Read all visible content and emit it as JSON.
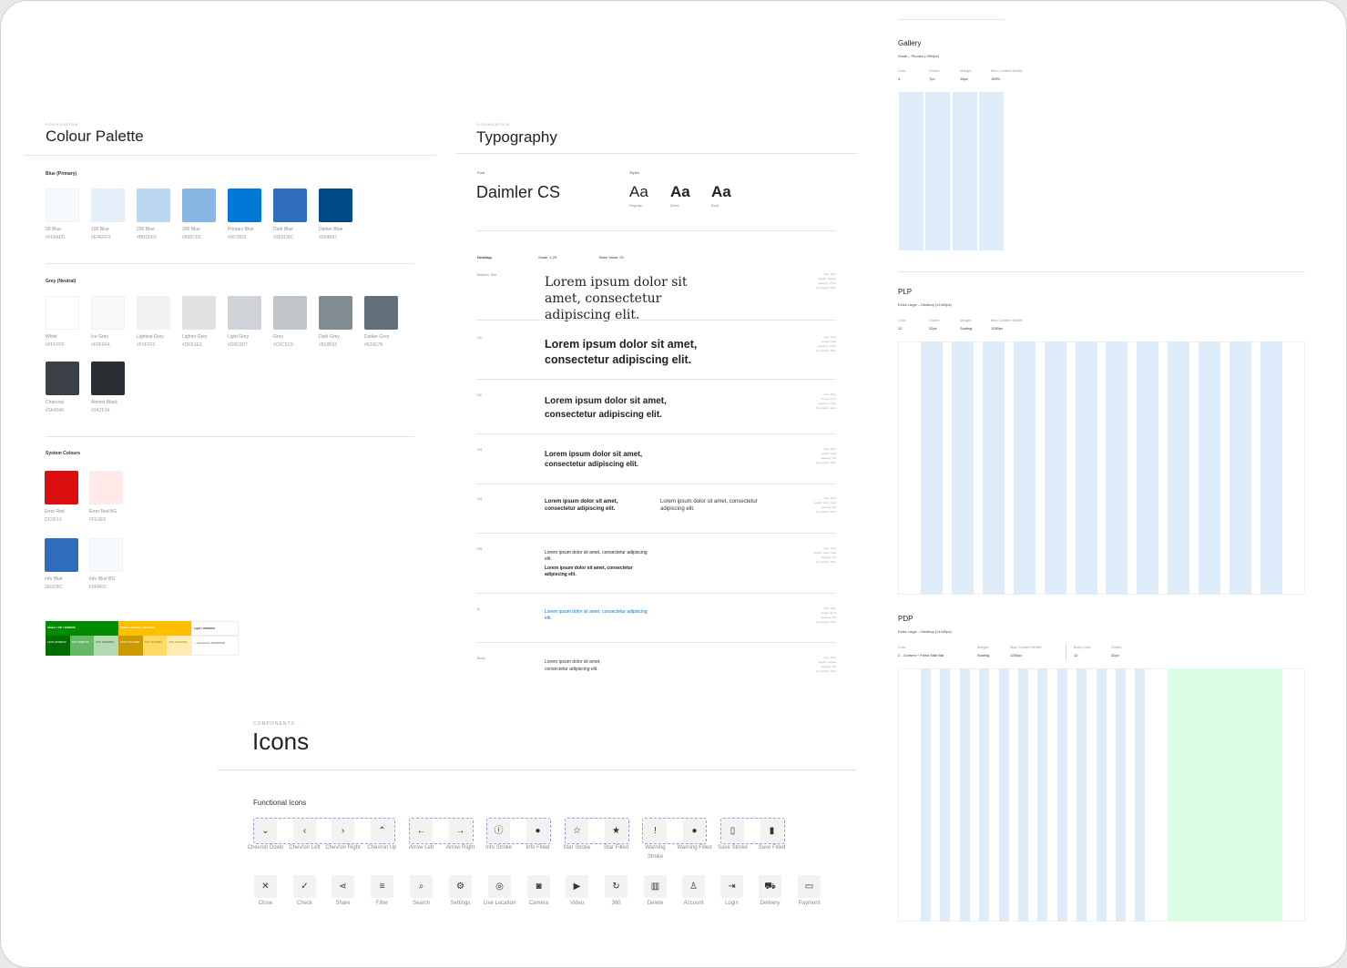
{
  "palette": {
    "eyebrow": "FOUNDATION",
    "title": "Colour Palette",
    "blue_heading": "Blue (Primary)",
    "blue": [
      {
        "name": "50 Blue",
        "hex": "#F6FAFD",
        "color": "#f6fafd"
      },
      {
        "name": "100 Blue",
        "hex": "#E4EFF9",
        "color": "#e4eff9"
      },
      {
        "name": "200 Blue",
        "hex": "#BBD6F0",
        "color": "#bbd6f0"
      },
      {
        "name": "300 Blue",
        "hex": "#89B7E5",
        "color": "#89b7e5"
      },
      {
        "name": "Primary Blue",
        "hex": "#0078D6",
        "color": "#0078d6"
      },
      {
        "name": "Dark Blue",
        "hex": "#2E6CBC",
        "color": "#2e6cbc"
      },
      {
        "name": "Darker Blue",
        "hex": "#004B87",
        "color": "#004b87"
      }
    ],
    "grey_heading": "Grey (Neutral)",
    "grey": [
      {
        "name": "White",
        "hex": "#FFFFFF",
        "color": "#ffffff"
      },
      {
        "name": "Ice Grey",
        "hex": "#F9F9FA",
        "color": "#f9f9fa"
      },
      {
        "name": "Lightest Grey",
        "hex": "#F0F2F3",
        "color": "#f0f2f3"
      },
      {
        "name": "Lighter Grey",
        "hex": "#DFE1E3",
        "color": "#dfe1e3"
      },
      {
        "name": "Light Grey",
        "hex": "#D0D3D7",
        "color": "#d0d3d7"
      },
      {
        "name": "Grey",
        "hex": "#C0C5C9",
        "color": "#c0c5c9"
      },
      {
        "name": "Dark Grey",
        "hex": "#818B92",
        "color": "#818b92"
      },
      {
        "name": "Darker Grey",
        "hex": "#626E78",
        "color": "#626e78"
      },
      {
        "name": "Charcoal",
        "hex": "#3A4046",
        "color": "#3a4046"
      },
      {
        "name": "Almost Black",
        "hex": "#2A2F34",
        "color": "#2a2f34"
      }
    ],
    "system_heading": "System Colours",
    "system": [
      {
        "name": "Error Red",
        "hex": "DC0F10",
        "color": "#dc0f10"
      },
      {
        "name": "Error Red BG",
        "hex": "FFE9E9",
        "color": "#ffe9e9"
      },
      {
        "name": "Info Blue",
        "hex": "2E6CBC",
        "color": "#2e6cbc"
      },
      {
        "name": "Info Blue BG",
        "hex": "F6FAFD",
        "color": "#f6fafd"
      }
    ],
    "status": {
      "ok": "Status / OK / #008A00",
      "caution": "Status / Caution / #FFBF00",
      "light": "Light / #FEFEFE",
      "ok_cells": [
        {
          "label": "120% #006E00",
          "color": "#006e00"
        },
        {
          "label": "40% #66B766",
          "color": "#66b766"
        },
        {
          "label": "30% #B2DBB2",
          "color": "#b2dbb2"
        }
      ],
      "caution_cells": [
        {
          "label": "120% #CC9900",
          "color": "#cc9900"
        },
        {
          "label": "60% #FFD966",
          "color": "#ffd966"
        },
        {
          "label": "30% #FFECB3",
          "color": "#ffecb3"
        }
      ],
      "light_cell": "—transparent #00000000"
    }
  },
  "typography": {
    "eyebrow": "FOUNDATION",
    "title": "Typography",
    "font_label": "Font",
    "font_name": "Daimler CS",
    "styles_label": "Styles",
    "styles": [
      {
        "sample": "Aa",
        "name": "Regular"
      },
      {
        "sample": "Aa",
        "name": "Demi"
      },
      {
        "sample": "Aa",
        "name": "Bold"
      }
    ],
    "desktop": "Desktop",
    "scale": "Scale: 1.25",
    "base": "Base Value: 20",
    "rows": [
      {
        "label": "Banner Title",
        "text": "Lorem ipsum dolor sit amet, consectetur adipiscing elit.",
        "meta": [
          "size: 40px",
          "weight: regular",
          "spacing: -0.5%",
          "line-height: 50px"
        ]
      },
      {
        "label": "H1",
        "text": "Lorem ipsum dolor sit amet, consectetur adipiscing elit.",
        "meta": [
          "size: 31px",
          "weight: bold",
          "spacing: -0.5%",
          "line-height: 38px"
        ]
      },
      {
        "label": "H2",
        "text": "Lorem ipsum dolor sit amet, consectetur adipiscing elit.",
        "meta": [
          "size: 25px",
          "weight: bold",
          "spacing: -0.5%",
          "line-height: 32px"
        ]
      },
      {
        "label": "H3",
        "text": "Lorem ipsum dolor sit amet, consectetur adipiscing elit.",
        "meta": [
          "size: 20px",
          "weight: bold",
          "spacing: 0%",
          "line-height: 26px"
        ]
      },
      {
        "label": "H4",
        "text": "Lorem ipsum dolor sit amet, consectetur adipiscing elit.",
        "text_alt": "Lorem ipsum dolor sit amet, consectetur adipiscing elit.",
        "meta": [
          "size: 16px",
          "weight: demi, bold",
          "spacing: 0%",
          "line-height: 22px"
        ]
      },
      {
        "label": "H5",
        "text": "Lorem ipsum dolor sit amet, consectetur adipiscing elit.",
        "text_alt": "Lorem ipsum dolor sit amet, consectetur adipiscing elit.",
        "meta": [
          "size: 13px",
          "weight: demi, bold",
          "spacing: 0%",
          "line-height: 18px"
        ]
      },
      {
        "label": "A",
        "text": "Lorem ipsum dolor sit amet, consectetur adipiscing elit.",
        "meta": [
          "size: 16px",
          "weight: demi",
          "spacing: 0%",
          "line-height: 24px"
        ]
      },
      {
        "label": "Body",
        "text": "Lorem ipsum dolor sit amet, consectetur adipiscing elit.",
        "meta": [
          "size: 16px",
          "weight: regular",
          "spacing: 0%",
          "line-height: 24px"
        ]
      }
    ]
  },
  "grids": {
    "gallery": {
      "title": "Gallery",
      "subtitle": "Small – Phones (<599px)",
      "labels": [
        "Cols:",
        "Gutter:",
        "Margin:",
        "Max Content Width:"
      ],
      "values": [
        "4",
        "7px",
        "16px",
        "100%"
      ]
    },
    "plp": {
      "title": "PLP",
      "subtitle": "Extra Large – Desktop (≥1440px)",
      "labels": [
        "Cols:",
        "Gutter:",
        "Margin:",
        "Max Content Width:"
      ],
      "values": [
        "12",
        "32px",
        "Scaling",
        "1280px"
      ]
    },
    "pdp": {
      "title": "PDP",
      "subtitle": "Extra Large – Desktop (≥1440px)",
      "labels": [
        "Cols:",
        "Margin:",
        "Max Content Width:",
        "Body Cols:",
        "Gutter:"
      ],
      "values": [
        "2 - Content + Fixed Side Bar",
        "Scaling",
        "1280px",
        "12",
        "32px"
      ]
    }
  },
  "icons": {
    "eyebrow": "COMPONENTS",
    "title": "Icons",
    "section": "Functional Icons",
    "row1": [
      {
        "glyph": "⌄",
        "label": "Chevron Down",
        "name": "chevron-down-icon"
      },
      {
        "glyph": "‹",
        "label": "Chevron Left",
        "name": "chevron-left-icon"
      },
      {
        "glyph": "›",
        "label": "Chevron Right",
        "name": "chevron-right-icon"
      },
      {
        "glyph": "⌃",
        "label": "Chevron Up",
        "name": "chevron-up-icon"
      },
      {
        "glyph": "←",
        "label": "Arrow Left",
        "name": "arrow-left-icon"
      },
      {
        "glyph": "→",
        "label": "Arrow Right",
        "name": "arrow-right-icon"
      },
      {
        "glyph": "ⓘ",
        "label": "Info Stroke",
        "name": "info-stroke-icon"
      },
      {
        "glyph": "●",
        "label": "Info Filled",
        "name": "info-filled-icon"
      },
      {
        "glyph": "☆",
        "label": "Star Stroke",
        "name": "star-stroke-icon"
      },
      {
        "glyph": "★",
        "label": "Star Filled",
        "name": "star-filled-icon"
      },
      {
        "glyph": "!",
        "label": "Warning Stroke",
        "name": "warning-stroke-icon"
      },
      {
        "glyph": "●",
        "label": "Warning Filled",
        "name": "warning-filled-icon"
      },
      {
        "glyph": "▯",
        "label": "Save Stroke",
        "name": "save-stroke-icon"
      },
      {
        "glyph": "▮",
        "label": "Save Filled",
        "name": "save-filled-icon"
      }
    ],
    "row2": [
      {
        "glyph": "✕",
        "label": "Close",
        "name": "close-icon"
      },
      {
        "glyph": "✓",
        "label": "Check",
        "name": "check-icon"
      },
      {
        "glyph": "⋖",
        "label": "Share",
        "name": "share-icon"
      },
      {
        "glyph": "≡",
        "label": "Filter",
        "name": "filter-icon"
      },
      {
        "glyph": "⌕",
        "label": "Search",
        "name": "search-icon"
      },
      {
        "glyph": "⚙",
        "label": "Settings",
        "name": "settings-icon"
      },
      {
        "glyph": "◎",
        "label": "Live Location",
        "name": "live-location-icon"
      },
      {
        "glyph": "◙",
        "label": "Camera",
        "name": "camera-icon"
      },
      {
        "glyph": "▶",
        "label": "Video",
        "name": "video-icon"
      },
      {
        "glyph": "↻",
        "label": "360",
        "name": "360-icon"
      },
      {
        "glyph": "▥",
        "label": "Delete",
        "name": "delete-icon"
      },
      {
        "glyph": "♙",
        "label": "Account",
        "name": "account-icon"
      },
      {
        "glyph": "⇥",
        "label": "Login",
        "name": "login-icon"
      },
      {
        "glyph": "⛟",
        "label": "Delivery",
        "name": "delivery-icon"
      },
      {
        "glyph": "▭",
        "label": "Payment",
        "name": "payment-icon"
      }
    ]
  }
}
